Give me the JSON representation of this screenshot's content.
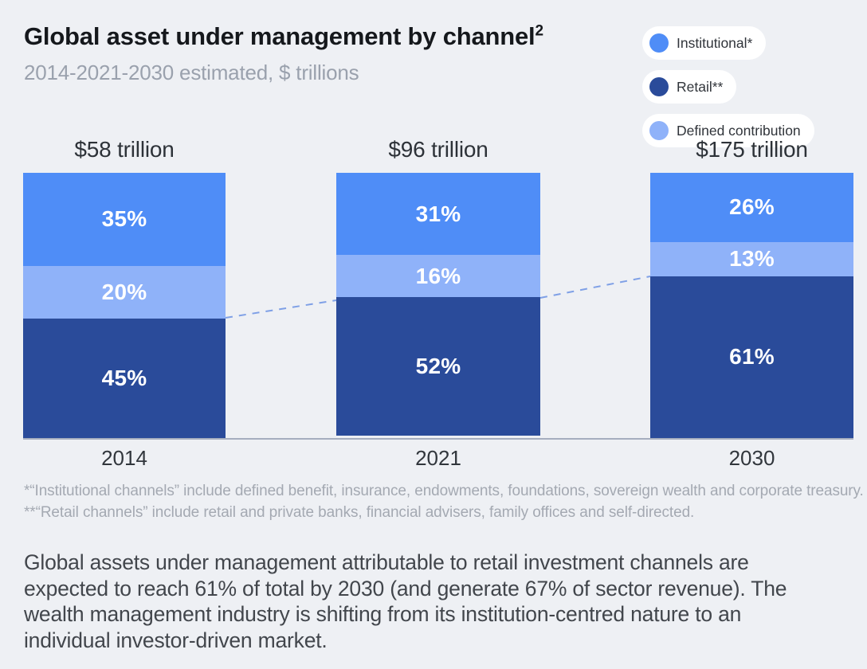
{
  "header": {
    "title": "Global asset under management by channel",
    "title_superscript": "2",
    "subtitle": "2014-2021-2030 estimated, $ trillions"
  },
  "legend": {
    "items": [
      {
        "label": "Institutional*",
        "color": "#4f8df7"
      },
      {
        "label": "Retail**",
        "color": "#2a4b9a"
      },
      {
        "label": "Defined contribution",
        "color": "#8fb2f9"
      }
    ]
  },
  "chart_data": {
    "type": "bar",
    "stacked": true,
    "title": "Global asset under management by channel",
    "subtitle": "2014-2021-2030 estimated, $ trillions",
    "categories": [
      "2014",
      "2021",
      "2030"
    ],
    "totals": [
      "$58 trillion",
      "$96 trillion",
      "$175 trillion"
    ],
    "value_format": "percent",
    "series": [
      {
        "name": "Institutional*",
        "color": "#4f8df7",
        "values": [
          35,
          31,
          26
        ]
      },
      {
        "name": "Defined contribution",
        "color": "#8fb2f9",
        "values": [
          20,
          16,
          13
        ]
      },
      {
        "name": "Retail**",
        "color": "#2a4b9a",
        "values": [
          45,
          52,
          61
        ]
      }
    ],
    "annotations": {
      "connector": "dashed line linking the top of the Retail segment across the three bars",
      "connector_color": "#7fa0e6"
    },
    "legend_position": "top-right",
    "grid": false
  },
  "footnotes": [
    "*“Institutional channels” include defined benefit, insurance, endowments, foundations, sovereign wealth and corporate treasury.",
    "**“Retail channels” include retail and private banks, financial advisers, family offices and self-directed."
  ],
  "paragraph": "Global assets under management attributable to retail investment channels are expected to reach 61% of total by 2030 (and generate 67% of sector revenue). The wealth management industry is shifting from its institution-centred nature to an individual investor-driven market."
}
